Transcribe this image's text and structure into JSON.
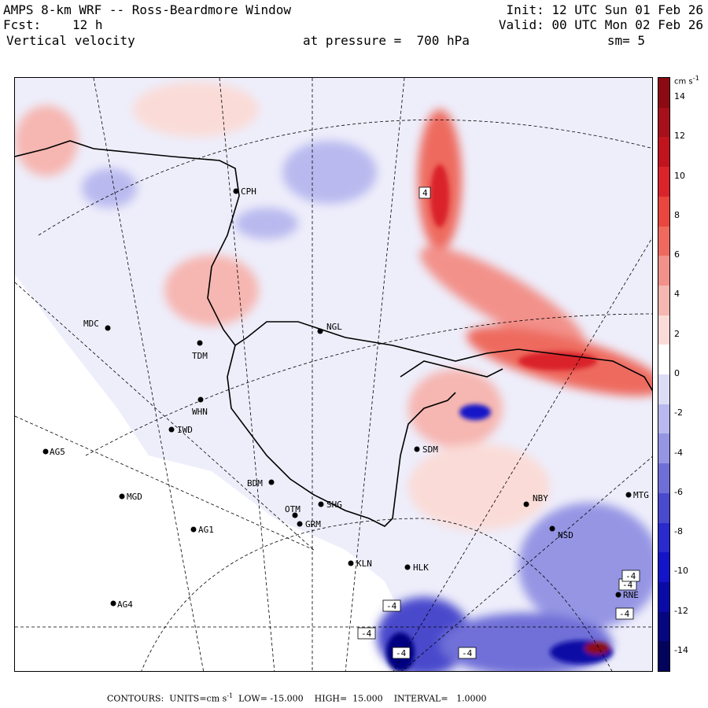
{
  "header": {
    "title": "AMPS 8-km WRF -- Ross-Beardmore Window",
    "fcst_label": "Fcst:",
    "fcst_value": "12 h",
    "variable": "Vertical velocity",
    "init": "Init: 12 UTC Sun 01 Feb 26",
    "valid": "Valid: 00 UTC Mon 02 Feb 26",
    "pressure": "at pressure =  700 hPa",
    "smoothing": "sm= 5"
  },
  "colorbar": {
    "units": "cm s",
    "units_exp": "-1",
    "ticks": [
      "14",
      "12",
      "10",
      "8",
      "6",
      "4",
      "2",
      "0",
      "-2",
      "-4",
      "-6",
      "-8",
      "-10",
      "-12",
      "-14"
    ],
    "colors": [
      "#8b0a14",
      "#a5101c",
      "#c0141f",
      "#d9242b",
      "#e8463e",
      "#ee6a5e",
      "#f2918a",
      "#f6b6b1",
      "#fadbd7",
      "#ffffff",
      "#dcdcf7",
      "#b9b9ef",
      "#9595e4",
      "#6f6fd8",
      "#4a4acc",
      "#2a2acd",
      "#1414c8",
      "#0a0aa6",
      "#060680",
      "#03035c"
    ],
    "min": -15,
    "max": 15
  },
  "stations": [
    {
      "name": "CPH"
    },
    {
      "name": "MDC"
    },
    {
      "name": "NGL"
    },
    {
      "name": "TDM"
    },
    {
      "name": "WHN"
    },
    {
      "name": "IWD"
    },
    {
      "name": "AG5"
    },
    {
      "name": "SDM"
    },
    {
      "name": "BDM"
    },
    {
      "name": "MGD"
    },
    {
      "name": "OTM"
    },
    {
      "name": "SHG"
    },
    {
      "name": "GRM"
    },
    {
      "name": "AG1"
    },
    {
      "name": "NBY"
    },
    {
      "name": "MTG"
    },
    {
      "name": "NSD"
    },
    {
      "name": "KLN"
    },
    {
      "name": "HLK"
    },
    {
      "name": "AG4"
    },
    {
      "name": "RNE"
    }
  ],
  "contour_labels": [
    "4",
    "-4",
    "-4",
    "-4",
    "-4",
    "-4",
    "-4",
    "-4"
  ],
  "footer": {
    "contours": "CONTOURS:",
    "units_text": "UNITS=cm s",
    "units_exp": "-1",
    "low": "LOW= -15.000",
    "high": "HIGH=  15.000",
    "interval": "INTERVAL=   1.0000"
  }
}
